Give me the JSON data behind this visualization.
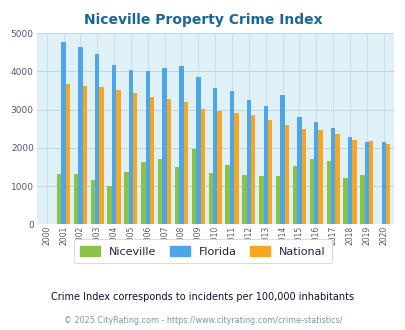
{
  "title": "Niceville Property Crime Index",
  "title_color": "#1a6699",
  "years": [
    2000,
    2001,
    2002,
    2003,
    2004,
    2005,
    2006,
    2007,
    2008,
    2009,
    2010,
    2011,
    2012,
    2013,
    2014,
    2015,
    2016,
    2017,
    2018,
    2019,
    2020
  ],
  "niceville": [
    0,
    1310,
    1320,
    1160,
    1010,
    1370,
    1640,
    1710,
    1500,
    1980,
    1340,
    1550,
    1280,
    1260,
    1260,
    1520,
    1720,
    1650,
    1220,
    1290,
    0
  ],
  "florida": [
    0,
    4760,
    4640,
    4450,
    4160,
    4030,
    4000,
    4080,
    4130,
    3840,
    3560,
    3490,
    3260,
    3100,
    3380,
    2800,
    2670,
    2510,
    2290,
    2160,
    2140
  ],
  "national": [
    0,
    3660,
    3620,
    3600,
    3500,
    3440,
    3340,
    3280,
    3200,
    3020,
    2960,
    2910,
    2870,
    2740,
    2590,
    2490,
    2460,
    2360,
    2210,
    2190,
    2110
  ],
  "niceville_color": "#8bc34a",
  "florida_color": "#4da6e8",
  "national_color": "#f5a623",
  "bg_color": "#dff0f6",
  "subtitle": "Crime Index corresponds to incidents per 100,000 inhabitants",
  "footer": "© 2025 CityRating.com - https://www.cityrating.com/crime-statistics/",
  "ylim": [
    0,
    5000
  ],
  "yticks": [
    0,
    1000,
    2000,
    3000,
    4000,
    5000
  ],
  "bar_width": 0.26
}
